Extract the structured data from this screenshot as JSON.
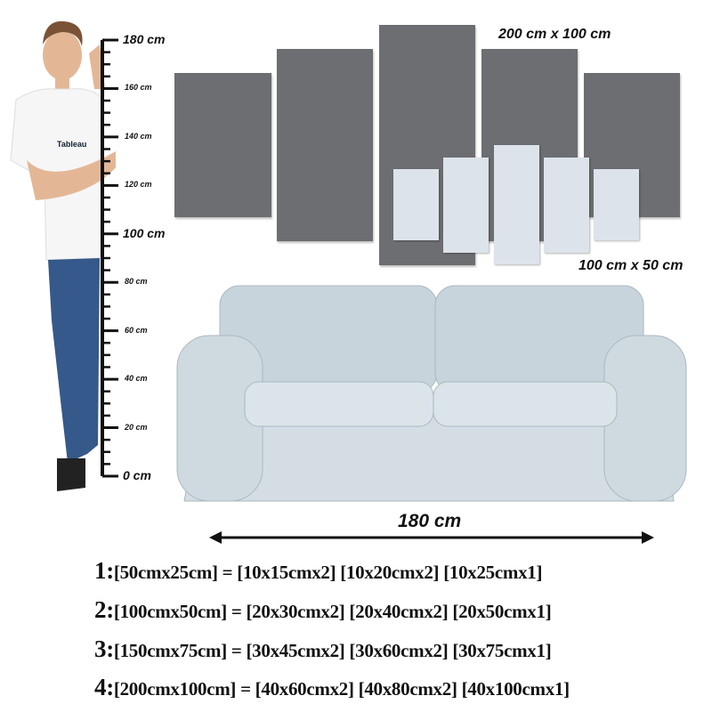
{
  "ruler": {
    "unit": "cm",
    "max": 180,
    "labels": [
      "180 cm",
      "160 cm",
      "140 cm",
      "120 cm",
      "100 cm",
      "80 cm",
      "60 cm",
      "40 cm",
      "20 cm",
      "0 cm"
    ]
  },
  "shirt_logo": "Tableau",
  "large_set_label": "200 cm x 100 cm",
  "small_set_label": "100 cm x 50 cm",
  "sofa_width_label": "180 cm",
  "colors": {
    "large_panel": "#6d6e72",
    "small_panel": "#dde3ea",
    "sofa": "#c9d5dc"
  },
  "specs": [
    {
      "num": "1:",
      "text": "[50cmx25cm] = [10x15cmx2] [10x20cmx2] [10x25cmx1]"
    },
    {
      "num": "2:",
      "text": "[100cmx50cm] = [20x30cmx2] [20x40cmx2] [20x50cmx1]"
    },
    {
      "num": "3:",
      "text": "[150cmx75cm] = [30x45cmx2] [30x60cmx2] [30x75cmx1]"
    },
    {
      "num": "4:",
      "text": "[200cmx100cm] = [40x60cmx2] [40x80cmx2] [40x100cmx1]"
    }
  ]
}
